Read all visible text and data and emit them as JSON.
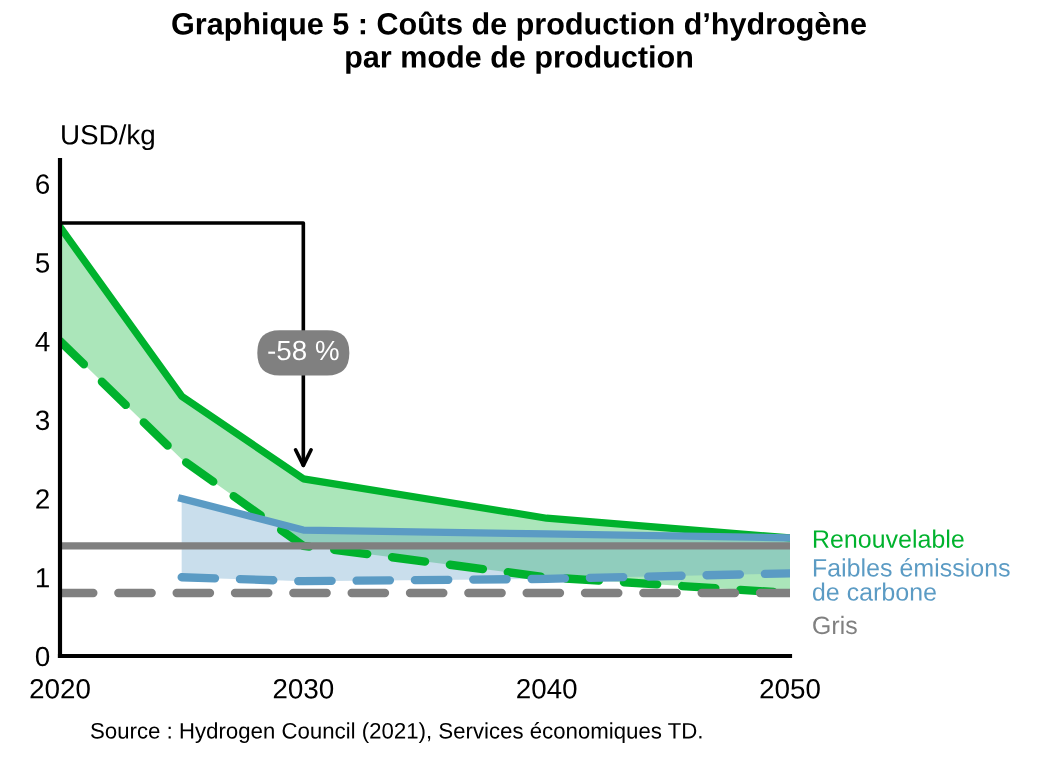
{
  "chart_data": {
    "type": "line",
    "title": "Graphique 5 : Coûts de production d’hydrogène\npar mode de production",
    "ylabel": "USD/kg",
    "x": [
      2020,
      2025,
      2030,
      2040,
      2050
    ],
    "series": [
      {
        "name": "Renouvelable",
        "color": "#00b22d",
        "values": [
          5.45,
          3.3,
          2.25,
          1.75,
          1.5
        ],
        "lower": [
          4.0,
          2.5,
          1.4,
          1.0,
          0.8
        ],
        "upper": [
          5.45,
          3.3,
          2.25,
          1.75,
          1.5
        ]
      },
      {
        "color": "#00b22d",
        "values": [
          4.0,
          2.5,
          1.4,
          1.0,
          0.8
        ],
        "line_style": "dashed"
      },
      {
        "name": "Faibles émissions\nde carbone",
        "color": "#5b9bc4",
        "values": [
          null,
          2.0,
          1.6,
          1.55,
          1.5
        ],
        "lower": [
          null,
          1.0,
          0.95,
          0.98,
          1.05
        ],
        "upper": [
          null,
          2.0,
          1.6,
          1.55,
          1.5
        ]
      },
      {
        "color": "#5b9bc4",
        "values": [
          null,
          1.0,
          0.95,
          0.98,
          1.05
        ],
        "line_style": "dashed"
      },
      {
        "name": "Gris",
        "color": "#808080",
        "values": [
          1.4,
          1.4,
          1.4,
          1.4,
          1.4
        ]
      },
      {
        "color": "#808080",
        "values": [
          0.8,
          0.8,
          0.8,
          0.8,
          0.8
        ],
        "line_style": "dashed"
      }
    ],
    "xlim": [
      2020,
      2050
    ],
    "xticks": [
      2020,
      2030,
      2040,
      2050
    ],
    "ylim": [
      0,
      6.3
    ],
    "yticks": [
      0,
      1,
      2,
      3,
      4,
      5,
      6
    ],
    "grid": false,
    "legend": "right",
    "marker": "none",
    "annotations": [
      {
        "text": "-58 %",
        "x": 2030,
        "y": 2.25
      },
      "Source : Hydrogen Council (2021), Services économiques TD."
    ]
  }
}
